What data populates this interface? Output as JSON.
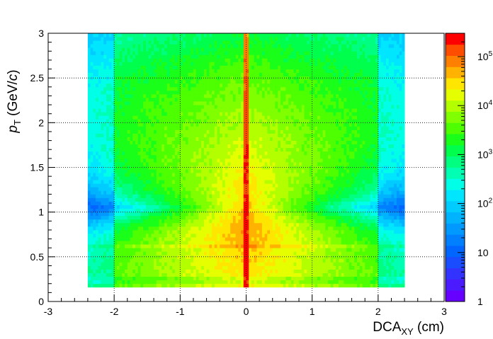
{
  "chart_data": {
    "type": "heatmap",
    "xlabel": {
      "base": "DCA",
      "sub": "XY",
      "unit": " (cm)"
    },
    "ylabel": {
      "italic": "p",
      "sub": "T",
      "unit_pre": " (GeV/",
      "unit_italic": "c",
      "unit_post": ")"
    },
    "xlim": [
      -3,
      3
    ],
    "ylim": [
      0,
      3
    ],
    "x_ticks": [
      -3,
      -2,
      -1,
      0,
      1,
      2,
      3
    ],
    "y_ticks": [
      0,
      0.5,
      1,
      1.5,
      2,
      2.5,
      3
    ],
    "grid": true,
    "zscale": "log",
    "zlim": [
      1,
      300000
    ],
    "colorbar": {
      "position": "right",
      "labels": [
        {
          "base": "1",
          "exp": "",
          "value": 1
        },
        {
          "base": "10",
          "exp": "",
          "value": 10
        },
        {
          "base": "10",
          "exp": "2",
          "value": 100
        },
        {
          "base": "10",
          "exp": "3",
          "value": 1000
        },
        {
          "base": "10",
          "exp": "4",
          "value": 10000
        },
        {
          "base": "10",
          "exp": "5",
          "value": 100000
        }
      ],
      "colors": [
        "#6600ff",
        "#4c1aff",
        "#3333ff",
        "#1a4dff",
        "#0066ff",
        "#0080ff",
        "#0099ff",
        "#00b3ff",
        "#00ccff",
        "#00e6ff",
        "#00ffe6",
        "#00ffb3",
        "#00ff80",
        "#00ff4d",
        "#1aff1a",
        "#4dff00",
        "#80ff00",
        "#b3ff00",
        "#e6ff00",
        "#ffe600",
        "#ffb300",
        "#ff8000",
        "#ff4d00",
        "#ff0000"
      ]
    },
    "distribution": {
      "x_populated_range": [
        -2.4,
        2.4
      ],
      "pt_threshold": 0.15,
      "peak_dca": 0.0,
      "peak_counts": 250000,
      "core_counts_at_pt1": 30000,
      "low_pt_band": [
        0.6,
        0.62
      ],
      "low_pt_floor_band": [
        0.2,
        0.3
      ]
    }
  }
}
